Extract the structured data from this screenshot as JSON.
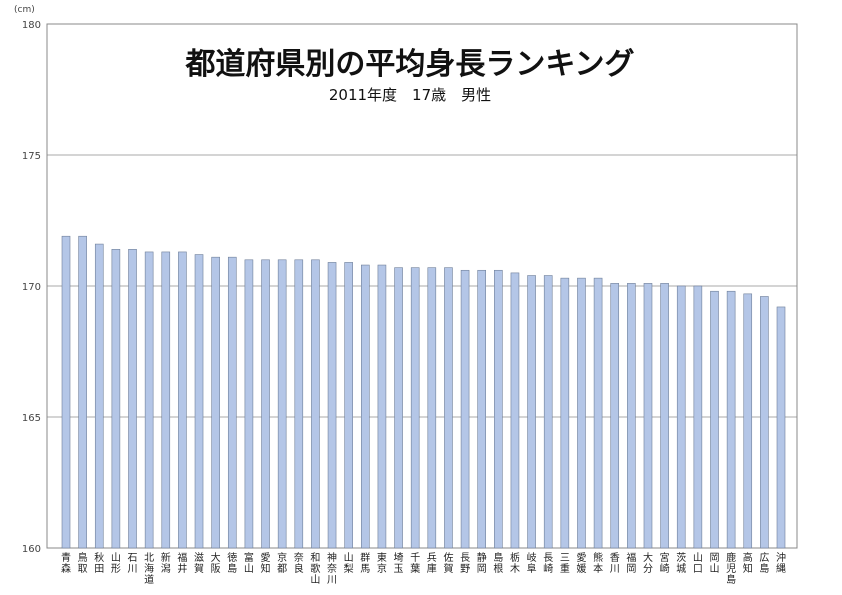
{
  "chart_data": {
    "type": "bar",
    "title": "都道府県別の平均身長ランキング",
    "subtitle": "2011年度　17歳　男性",
    "ylabel": "(cm)",
    "ylim": [
      160,
      180
    ],
    "yticks": [
      "160",
      "165",
      "170",
      "175",
      "180"
    ],
    "grid": true,
    "legend": "none",
    "bar_color": "#b4c6e7",
    "bar_border_color": "#6f7f99",
    "categories": [
      "青森",
      "鳥取",
      "秋田",
      "山形",
      "石川",
      "北海道",
      "新潟",
      "福井",
      "滋賀",
      "大阪",
      "徳島",
      "富山",
      "愛知",
      "京都",
      "奈良",
      "和歌山",
      "神奈川",
      "山梨",
      "群馬",
      "東京",
      "埼玉",
      "千葉",
      "兵庫",
      "佐賀",
      "長野",
      "静岡",
      "島根",
      "栃木",
      "岐阜",
      "長崎",
      "三重",
      "愛媛",
      "熊本",
      "香川",
      "福岡",
      "大分",
      "宮崎",
      "茨城",
      "山口",
      "岡山",
      "鹿児島",
      "高知",
      "広島",
      "沖縄"
    ],
    "values": [
      171.9,
      171.9,
      171.6,
      171.4,
      171.4,
      171.3,
      171.3,
      171.3,
      171.2,
      171.1,
      171.1,
      171.0,
      171.0,
      171.0,
      171.0,
      171.0,
      170.9,
      170.9,
      170.8,
      170.8,
      170.7,
      170.7,
      170.7,
      170.7,
      170.6,
      170.6,
      170.6,
      170.5,
      170.4,
      170.4,
      170.3,
      170.3,
      170.3,
      170.1,
      170.1,
      170.1,
      170.1,
      170.0,
      170.0,
      169.8,
      169.8,
      169.7,
      169.6,
      169.2
    ]
  }
}
